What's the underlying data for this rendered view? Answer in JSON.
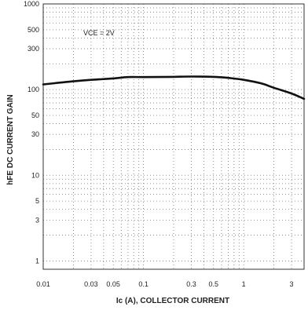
{
  "chart_data": {
    "type": "line",
    "xscale": "log",
    "yscale": "log",
    "xlim": [
      0.01,
      4
    ],
    "ylim": [
      0.8,
      1000
    ],
    "xticks": [
      0.01,
      0.03,
      0.05,
      0.1,
      0.3,
      0.5,
      1,
      3
    ],
    "xtick_labels": [
      "0.01",
      "0.03",
      "0.05",
      "0.1",
      "0.3",
      "0.5",
      "1",
      "3"
    ],
    "yticks": [
      1,
      3,
      5,
      10,
      30,
      50,
      100,
      300,
      500,
      1000
    ],
    "ytick_labels": [
      "1",
      "3",
      "5",
      "10",
      "30",
      "50",
      "100",
      "300",
      "500",
      "1000"
    ],
    "xlabel": "Ic (A), COLLECTOR CURRENT",
    "ylabel": "hFE DC CURRENT GAIN",
    "grid": true,
    "annotations": [
      {
        "text": "VCE = 2V"
      }
    ],
    "series": [
      {
        "x": [
          0.01,
          0.02,
          0.03,
          0.05,
          0.07,
          0.1,
          0.2,
          0.3,
          0.5,
          0.7,
          1,
          1.5,
          2,
          3,
          4
        ],
        "y": [
          115,
          125,
          130,
          135,
          140,
          140,
          141,
          142,
          141,
          137,
          130,
          118,
          105,
          90,
          78
        ]
      }
    ]
  }
}
